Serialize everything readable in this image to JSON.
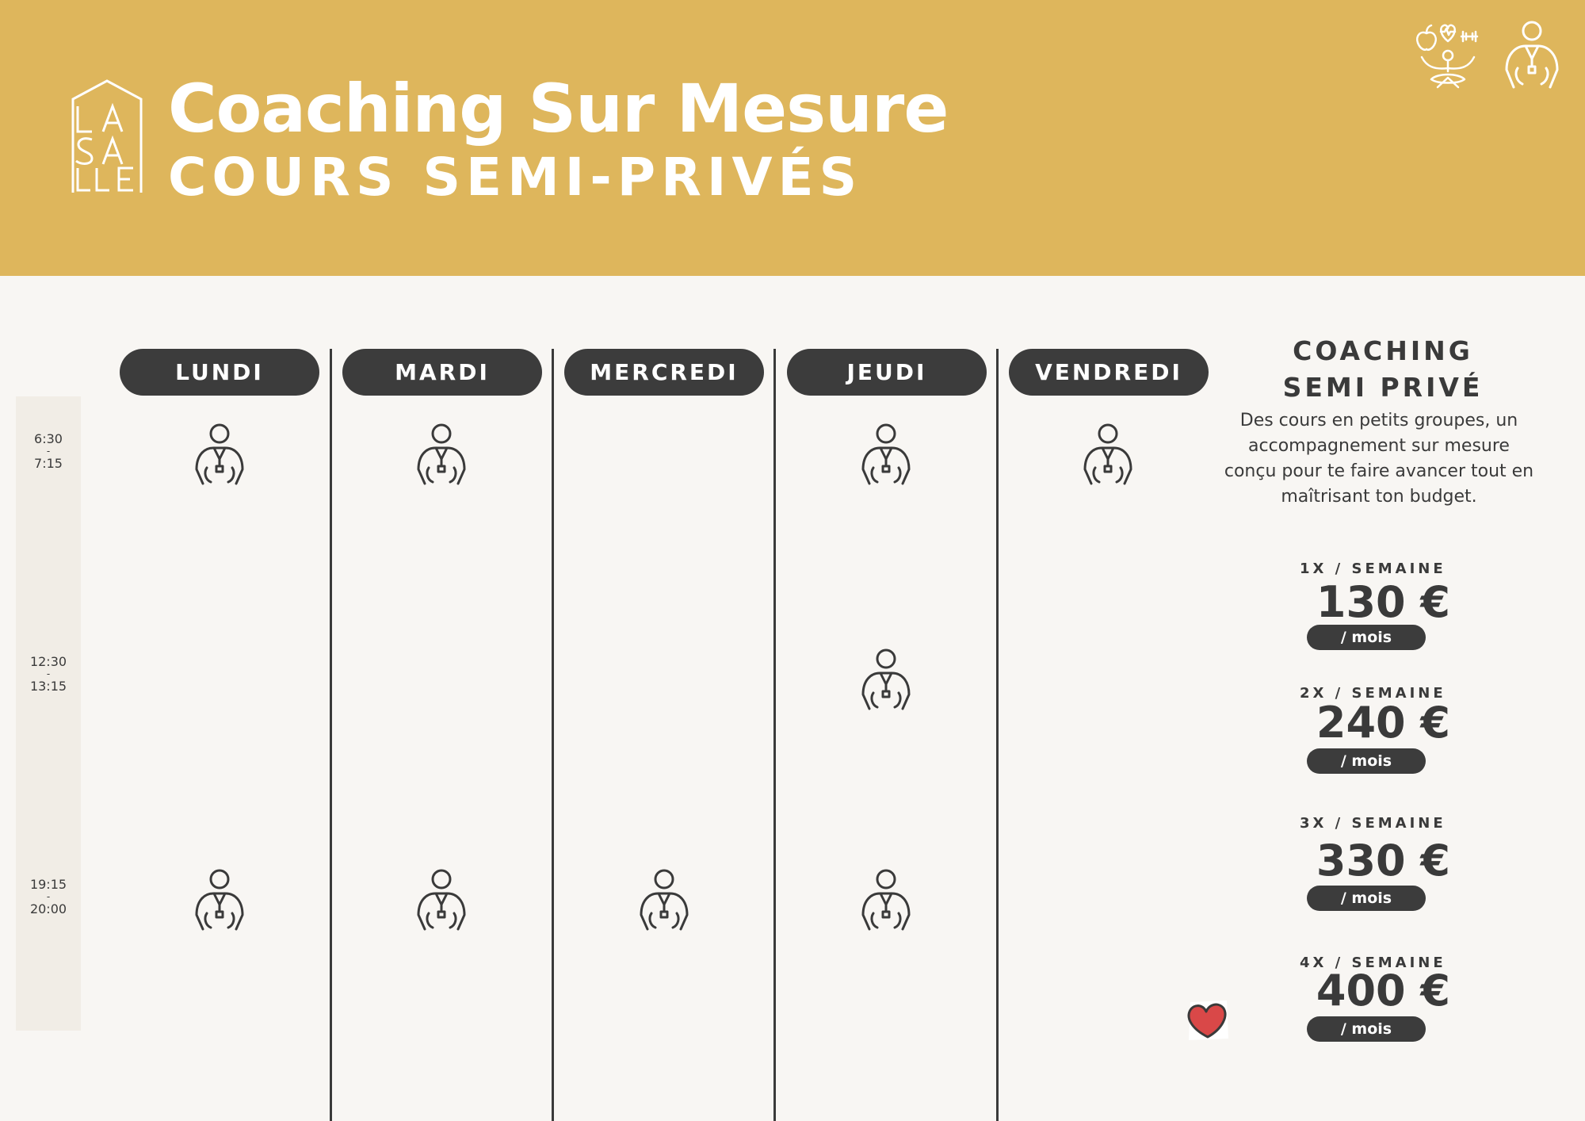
{
  "header": {
    "logo_text": "LA SA LLE",
    "title": "Coaching Sur Mesure",
    "subtitle": "COURS SEMI-PRIVÉS"
  },
  "header_icons": [
    "wellness-icon",
    "coach-icon"
  ],
  "times": [
    {
      "start": "6:30",
      "sep": "-",
      "end": "7:15"
    },
    {
      "start": "12:30",
      "sep": "-",
      "end": "13:15"
    },
    {
      "start": "19:15",
      "sep": "-",
      "end": "20:00"
    }
  ],
  "days": [
    "LUNDI",
    "MARDI",
    "MERCREDI",
    "JEUDI",
    "VENDREDI"
  ],
  "schedule_icon": "coach-icon",
  "schedule": {
    "LUNDI": [
      "6:30",
      "19:15"
    ],
    "MARDI": [
      "6:30",
      "19:15"
    ],
    "MERCREDI": [
      "19:15"
    ],
    "JEUDI": [
      "6:30",
      "12:30",
      "19:15"
    ],
    "VENDREDI": [
      "6:30"
    ]
  },
  "sidebar": {
    "title_line1": "COACHING",
    "title_line2": "SEMI PRIVÉ",
    "description": "Des cours en petits groupes, un accompagnement sur mesure conçu pour te faire avancer tout en maîtrisant ton budget.",
    "plans": [
      {
        "frequency": "1X / SEMAINE",
        "price": "130 €",
        "period": "/ mois"
      },
      {
        "frequency": "2X / SEMAINE",
        "price": "240 €",
        "period": "/ mois"
      },
      {
        "frequency": "3X / SEMAINE",
        "price": "330 €",
        "period": "/ mois"
      },
      {
        "frequency": "4X / SEMAINE",
        "price": "400 €",
        "period": "/ mois"
      }
    ]
  },
  "decoration": "heart-icon",
  "colors": {
    "header": "#deb65c",
    "background": "#f8f6f3",
    "dark": "#3c3c3c",
    "time_column": "#f1ede6",
    "heart": "#d94848"
  }
}
